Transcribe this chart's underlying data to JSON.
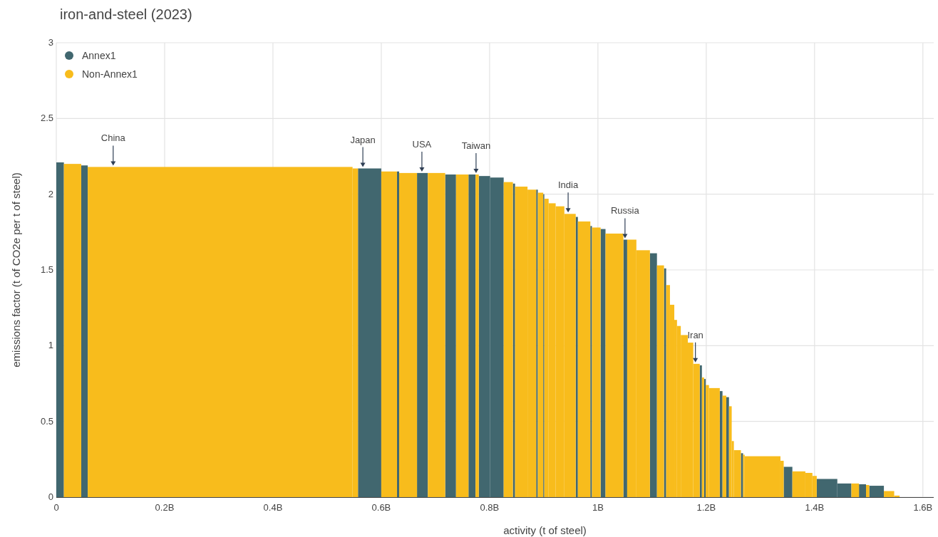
{
  "chart_data": {
    "type": "histogram",
    "title": "iron-and-steel (2023)",
    "xlabel": "activity (t of steel)",
    "ylabel": "emissions factor (t of CO2e per t of steel)",
    "bins": [
      0,
      14000000.0,
      46000000.0,
      58000000.0,
      547000000.0,
      557000000.0,
      600000000.0,
      629000000.0,
      633000000.0,
      666000000.0,
      686000000.0,
      718000000.0,
      738000000.0,
      761000000.0,
      774000000.0,
      780000000.0,
      801000000.0,
      826000000.0,
      843000000.0,
      847000000.0,
      870000000.0,
      886000000.0,
      889000000.0,
      899000000.0,
      901000000.0,
      909000000.0,
      922000000.0,
      938000000.0,
      959000000.0,
      963000000.0,
      986000000.0,
      989000000.0,
      1005000000.0,
      1014000000.0,
      1047000000.0,
      1054000000.0,
      1071000000.0,
      1096000000.0,
      1109000000.0,
      1122000000.0,
      1126000000.0,
      1133000000.0,
      1141000000.0,
      1146000000.0,
      1153000000.0,
      1166000000.0,
      1176000000.0,
      1188000000.0,
      1192000000.0,
      1196000000.0,
      1199000000.0,
      1205000000.0,
      1225000000.0,
      1230000000.0,
      1237000000.0,
      1242000000.0,
      1247000000.0,
      1251000000.0,
      1264000000.0,
      1268000000.0,
      1271000000.0,
      1337000000.0,
      1343000000.0,
      1359000000.0,
      1383000000.0,
      1396000000.0,
      1404000000.0,
      1442000000.0,
      1468000000.0,
      1482000000.0,
      1495000000.0,
      1501000000.0,
      1528000000.0,
      1547000000.0,
      1557000000.0
    ],
    "series": [
      {
        "name": "Annex1",
        "color": "#41676f",
        "values": [
          2.21,
          null,
          2.19,
          null,
          null,
          2.17,
          null,
          2.15,
          null,
          2.14,
          null,
          2.13,
          null,
          2.13,
          null,
          2.12,
          2.11,
          null,
          2.07,
          null,
          null,
          2.03,
          null,
          2.0,
          null,
          null,
          null,
          null,
          1.85,
          null,
          1.79,
          null,
          1.77,
          null,
          1.7,
          null,
          null,
          1.61,
          null,
          1.51,
          null,
          null,
          null,
          null,
          null,
          null,
          null,
          0.87,
          null,
          0.78,
          null,
          null,
          0.7,
          null,
          0.66,
          null,
          null,
          null,
          0.29,
          null,
          null,
          null,
          0.2,
          null,
          null,
          null,
          0.12,
          0.09,
          null,
          0.085,
          null,
          0.075,
          null,
          null
        ]
      },
      {
        "name": "Non-Annex1",
        "color": "#f8bc1c",
        "values": [
          null,
          2.2,
          null,
          2.18,
          2.17,
          null,
          2.15,
          null,
          2.14,
          null,
          2.14,
          null,
          2.13,
          null,
          2.13,
          null,
          null,
          2.08,
          null,
          2.05,
          2.03,
          null,
          2.01,
          null,
          1.97,
          1.94,
          1.92,
          1.87,
          null,
          1.82,
          null,
          1.78,
          null,
          1.74,
          null,
          1.7,
          1.63,
          null,
          1.53,
          null,
          1.4,
          1.27,
          1.17,
          1.13,
          1.07,
          1.02,
          0.88,
          null,
          0.79,
          null,
          0.74,
          0.72,
          null,
          0.67,
          null,
          0.6,
          0.37,
          0.31,
          null,
          0.28,
          0.27,
          0.24,
          null,
          0.17,
          0.16,
          0.14,
          null,
          null,
          0.09,
          null,
          0.08,
          null,
          0.04,
          0.01
        ]
      }
    ],
    "annotations": [
      {
        "text": "China",
        "x": 105000000.0,
        "y": 2.18
      },
      {
        "text": "Japan",
        "x": 566000000.0,
        "y": 2.17
      },
      {
        "text": "USA",
        "x": 675000000.0,
        "y": 2.14
      },
      {
        "text": "Taiwan",
        "x": 775000000.0,
        "y": 2.13
      },
      {
        "text": "India",
        "x": 945000000.0,
        "y": 1.87
      },
      {
        "text": "Russia",
        "x": 1050000000.0,
        "y": 1.7
      },
      {
        "text": "Iran",
        "x": 1180000000.0,
        "y": 0.88
      }
    ],
    "xlim": [
      0,
      1620000000.0
    ],
    "xticks": [
      0,
      {
        "value": 200000000.0,
        "label": "0.2B"
      },
      {
        "value": 400000000.0,
        "label": "0.4B"
      },
      {
        "value": 600000000.0,
        "label": "0.6B"
      },
      {
        "value": 800000000.0,
        "label": "0.8B"
      },
      {
        "value": 1000000000.0,
        "label": "1B"
      },
      {
        "value": 1200000000.0,
        "label": "1.2B"
      },
      {
        "value": 1400000000.0,
        "label": "1.4B"
      },
      {
        "value": 1600000000.0,
        "label": "1.6B"
      }
    ],
    "ylim": [
      0,
      3
    ],
    "yticks": [
      0,
      0.5,
      1,
      1.5,
      2,
      2.5,
      3
    ],
    "grid": true,
    "legend": "top left"
  }
}
